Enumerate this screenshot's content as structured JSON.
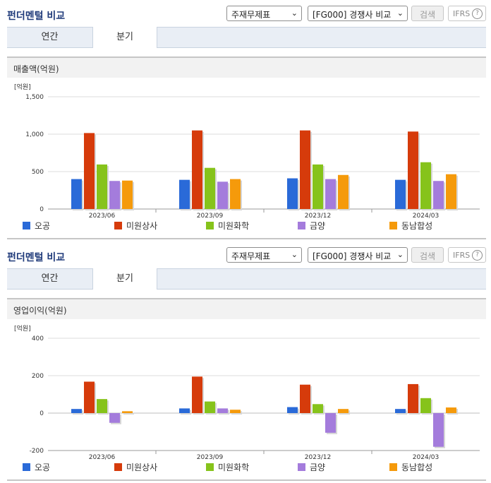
{
  "colors": {
    "series": [
      "#2a6ad8",
      "#d63b0b",
      "#86c31b",
      "#a47cdc",
      "#f59a0b"
    ]
  },
  "panels": [
    {
      "title": "펀더멘털 비교",
      "select_statement": "주재무제표",
      "select_compare": "[FG000] 경쟁사 비교",
      "search_label": "검색",
      "ifrs_label": "IFRS",
      "help_icon": "question-circle-icon",
      "tabs": [
        {
          "label": "연간"
        },
        {
          "label": "분기"
        }
      ],
      "section_title": "매출액(억원)",
      "chart_data": {
        "type": "bar",
        "unit_label": "[억원]",
        "categories": [
          "2023/06",
          "2023/09",
          "2023/12",
          "2024/03"
        ],
        "ylim": [
          0,
          1500
        ],
        "yticks": [
          "1,500",
          "1,000",
          "500",
          "0"
        ],
        "yticks_values": [
          1500,
          1000,
          500,
          0
        ],
        "legend_position": "bottom",
        "series": [
          {
            "name": "오공",
            "values": [
              400,
              390,
              410,
              390
            ]
          },
          {
            "name": "미원상사",
            "values": [
              1015,
              1050,
              1050,
              1035
            ]
          },
          {
            "name": "미원화학",
            "values": [
              595,
              550,
              595,
              625
            ]
          },
          {
            "name": "금양",
            "values": [
              375,
              365,
              400,
              375
            ]
          },
          {
            "name": "동남합성",
            "values": [
              380,
              400,
              455,
              465
            ]
          }
        ]
      }
    },
    {
      "title": "펀더멘털 비교",
      "select_statement": "주재무제표",
      "select_compare": "[FG000] 경쟁사 비교",
      "search_label": "검색",
      "ifrs_label": "IFRS",
      "help_icon": "question-circle-icon",
      "tabs": [
        {
          "label": "연간"
        },
        {
          "label": "분기"
        }
      ],
      "section_title": "영업이익(억원)",
      "chart_data": {
        "type": "bar",
        "unit_label": "[억원]",
        "categories": [
          "2023/06",
          "2023/09",
          "2023/12",
          "2024/03"
        ],
        "ylim": [
          -200,
          400
        ],
        "yticks": [
          "400",
          "200",
          "0",
          "-200"
        ],
        "yticks_values": [
          400,
          200,
          0,
          -200
        ],
        "legend_position": "bottom",
        "series": [
          {
            "name": "오공",
            "values": [
              22,
              25,
              32,
              22
            ]
          },
          {
            "name": "미원상사",
            "values": [
              168,
              195,
              152,
              155
            ]
          },
          {
            "name": "미원화학",
            "values": [
              75,
              62,
              48,
              80
            ]
          },
          {
            "name": "금양",
            "values": [
              -52,
              25,
              -105,
              -180
            ]
          },
          {
            "name": "동남합성",
            "values": [
              10,
              18,
              22,
              30
            ]
          }
        ]
      }
    }
  ]
}
